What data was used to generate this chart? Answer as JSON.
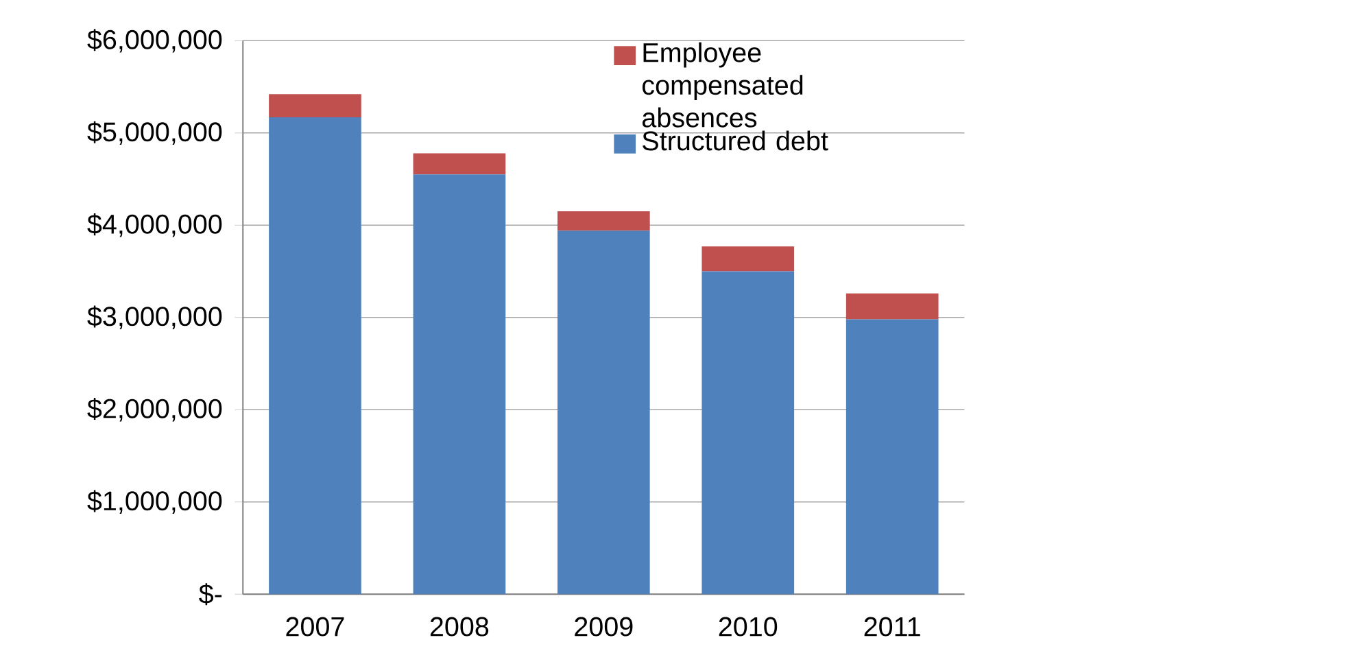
{
  "chart_data": {
    "type": "bar",
    "stacked": true,
    "categories": [
      "2007",
      "2008",
      "2009",
      "2010",
      "2011"
    ],
    "series": [
      {
        "name": "Structured debt",
        "color": "#4f81bd",
        "values": [
          5170000,
          4550000,
          3940000,
          3500000,
          2980000
        ]
      },
      {
        "name": "Employee compensated absences",
        "color": "#c0504d",
        "values": [
          250000,
          230000,
          210000,
          270000,
          280000
        ]
      }
    ],
    "ylim": [
      0,
      6000000
    ],
    "yticks": [
      {
        "value": 0,
        "label": "$-"
      },
      {
        "value": 1000000,
        "label": "$1,000,000"
      },
      {
        "value": 2000000,
        "label": "$2,000,000"
      },
      {
        "value": 3000000,
        "label": "$3,000,000"
      },
      {
        "value": 4000000,
        "label": "$4,000,000"
      },
      {
        "value": 5000000,
        "label": "$5,000,000"
      },
      {
        "value": 6000000,
        "label": "$6,000,000"
      }
    ],
    "grid": "y",
    "legend": "top right"
  }
}
